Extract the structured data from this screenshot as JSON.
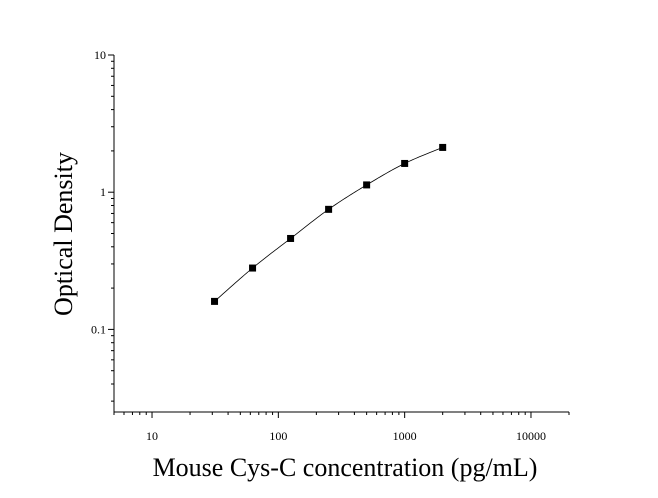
{
  "chart_data": {
    "type": "scatter",
    "xlabel": "Mouse Cys-C concentration (pg/mL)",
    "ylabel": "Optical Density",
    "x_scale": "log",
    "y_scale": "log",
    "xlim": [
      5,
      20000
    ],
    "ylim": [
      0.025,
      10
    ],
    "x_ticks": [
      10,
      100,
      1000,
      10000
    ],
    "x_tick_labels": [
      "10",
      "100",
      "1000",
      "10000"
    ],
    "y_ticks": [
      0.1,
      1,
      10
    ],
    "y_tick_labels": [
      "0.1",
      "1",
      "10"
    ],
    "grid": false,
    "legend": "none",
    "series": [
      {
        "x": [
          31.25,
          62.5,
          125,
          250,
          500,
          1000,
          2000
        ],
        "y": [
          0.16,
          0.28,
          0.46,
          0.75,
          1.13,
          1.62,
          2.12
        ],
        "marker": "square",
        "fit_line": true,
        "color": "#000000"
      }
    ]
  }
}
